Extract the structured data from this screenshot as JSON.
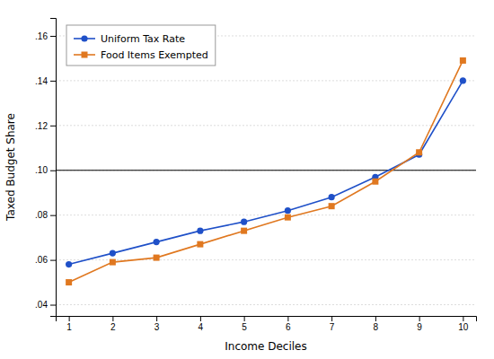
{
  "chart_data": {
    "type": "line",
    "x": [
      1,
      2,
      3,
      4,
      5,
      6,
      7,
      8,
      9,
      10
    ],
    "xlabel": "Income Deciles",
    "ylabel": "Taxed Budget Share",
    "xlim": [
      0.7,
      10.3
    ],
    "xticks": [
      1,
      2,
      3,
      4,
      5,
      6,
      7,
      8,
      9,
      10
    ],
    "ylim": [
      0.035,
      0.168
    ],
    "yticks": [
      {
        "value": 0.04,
        "label": ".04"
      },
      {
        "value": 0.06,
        "label": ".06"
      },
      {
        "value": 0.08,
        "label": ".08"
      },
      {
        "value": 0.1,
        "label": ".10"
      },
      {
        "value": 0.12,
        "label": ".12"
      },
      {
        "value": 0.14,
        "label": ".14"
      },
      {
        "value": 0.16,
        "label": ".16"
      }
    ],
    "grid": "y",
    "legend": "upper left",
    "reference_line": 0.1,
    "series": [
      {
        "name": "Uniform Tax Rate",
        "color": "#1f50c8",
        "marker": "circle",
        "values": [
          0.058,
          0.063,
          0.068,
          0.073,
          0.077,
          0.082,
          0.088,
          0.097,
          0.107,
          0.14
        ]
      },
      {
        "name": "Food Items Exempted",
        "color": "#e07820",
        "marker": "square",
        "values": [
          0.05,
          0.059,
          0.061,
          0.067,
          0.073,
          0.079,
          0.084,
          0.095,
          0.108,
          0.149
        ]
      }
    ]
  }
}
